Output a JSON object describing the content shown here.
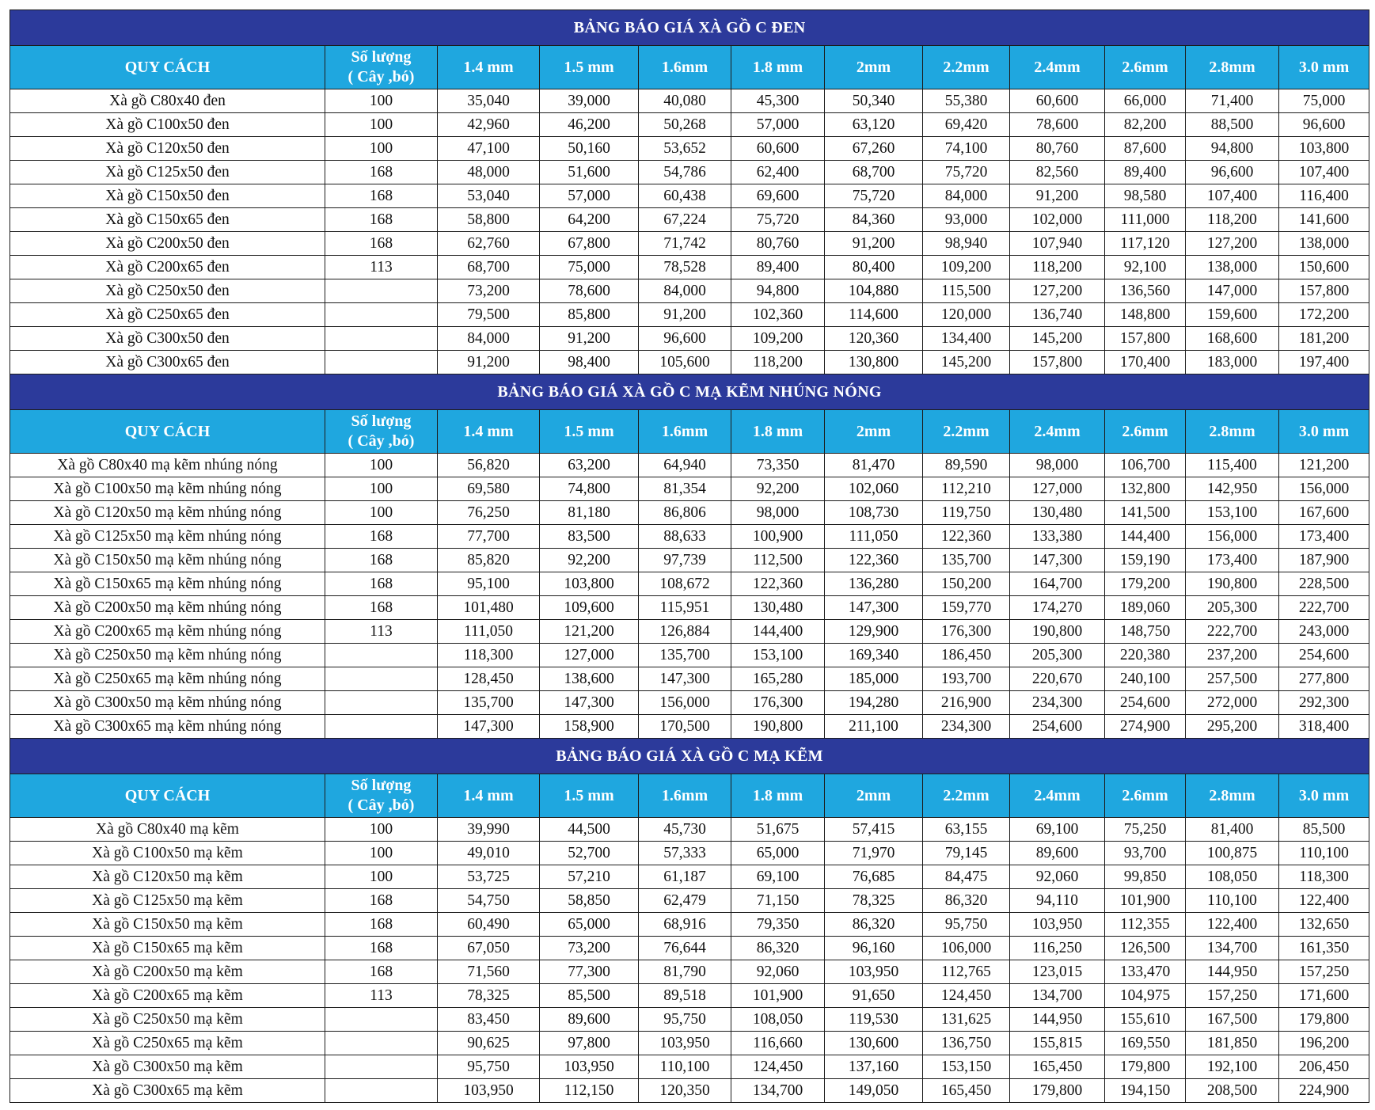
{
  "headers": {
    "spec": "QUY CÁCH",
    "qty_line1": "Số lượng",
    "qty_line2": "( Cây ,bó)",
    "thicknesses": [
      "1.4 mm",
      "1.5 mm",
      "1.6mm",
      "1.8 mm",
      "2mm",
      "2.2mm",
      "2.4mm",
      "2.6mm",
      "2.8mm",
      "3.0 mm"
    ]
  },
  "tables": [
    {
      "title": "BẢNG BÁO GIÁ XÀ GỒ C ĐEN",
      "rows": [
        {
          "spec": "Xà gồ C80x40 đen",
          "qty": "100",
          "prices": [
            "35,040",
            "39,000",
            "40,080",
            "45,300",
            "50,340",
            "55,380",
            "60,600",
            "66,000",
            "71,400",
            "75,000"
          ]
        },
        {
          "spec": "Xà gồ C100x50 đen",
          "qty": "100",
          "prices": [
            "42,960",
            "46,200",
            "50,268",
            "57,000",
            "63,120",
            "69,420",
            "78,600",
            "82,200",
            "88,500",
            "96,600"
          ]
        },
        {
          "spec": "Xà gồ C120x50 đen",
          "qty": "100",
          "prices": [
            "47,100",
            "50,160",
            "53,652",
            "60,600",
            "67,260",
            "74,100",
            "80,760",
            "87,600",
            "94,800",
            "103,800"
          ]
        },
        {
          "spec": "Xà gồ C125x50 đen",
          "qty": "168",
          "prices": [
            "48,000",
            "51,600",
            "54,786",
            "62,400",
            "68,700",
            "75,720",
            "82,560",
            "89,400",
            "96,600",
            "107,400"
          ]
        },
        {
          "spec": "Xà gồ C150x50 đen",
          "qty": "168",
          "prices": [
            "53,040",
            "57,000",
            "60,438",
            "69,600",
            "75,720",
            "84,000",
            "91,200",
            "98,580",
            "107,400",
            "116,400"
          ]
        },
        {
          "spec": "Xà gồ C150x65 đen",
          "qty": "168",
          "prices": [
            "58,800",
            "64,200",
            "67,224",
            "75,720",
            "84,360",
            "93,000",
            "102,000",
            "111,000",
            "118,200",
            "141,600"
          ]
        },
        {
          "spec": "Xà gồ C200x50 đen",
          "qty": "168",
          "prices": [
            "62,760",
            "67,800",
            "71,742",
            "80,760",
            "91,200",
            "98,940",
            "107,940",
            "117,120",
            "127,200",
            "138,000"
          ]
        },
        {
          "spec": "Xà gồ C200x65 đen",
          "qty": "113",
          "prices": [
            "68,700",
            "75,000",
            "78,528",
            "89,400",
            "80,400",
            "109,200",
            "118,200",
            "92,100",
            "138,000",
            "150,600"
          ]
        },
        {
          "spec": "Xà gồ C250x50 đen",
          "qty": "",
          "prices": [
            "73,200",
            "78,600",
            "84,000",
            "94,800",
            "104,880",
            "115,500",
            "127,200",
            "136,560",
            "147,000",
            "157,800"
          ]
        },
        {
          "spec": "Xà gồ C250x65 đen",
          "qty": "",
          "prices": [
            "79,500",
            "85,800",
            "91,200",
            "102,360",
            "114,600",
            "120,000",
            "136,740",
            "148,800",
            "159,600",
            "172,200"
          ]
        },
        {
          "spec": "Xà gồ C300x50 đen",
          "qty": "",
          "prices": [
            "84,000",
            "91,200",
            "96,600",
            "109,200",
            "120,360",
            "134,400",
            "145,200",
            "157,800",
            "168,600",
            "181,200"
          ]
        },
        {
          "spec": "Xà gồ C300x65 đen",
          "qty": "",
          "prices": [
            "91,200",
            "98,400",
            "105,600",
            "118,200",
            "130,800",
            "145,200",
            "157,800",
            "170,400",
            "183,000",
            "197,400"
          ]
        }
      ]
    },
    {
      "title": "BẢNG BÁO GIÁ XÀ GỒ C MẠ KẼM NHÚNG NÓNG",
      "rows": [
        {
          "spec": "Xà gồ C80x40 mạ kẽm nhúng nóng",
          "qty": "100",
          "prices": [
            "56,820",
            "63,200",
            "64,940",
            "73,350",
            "81,470",
            "89,590",
            "98,000",
            "106,700",
            "115,400",
            "121,200"
          ]
        },
        {
          "spec": "Xà gồ C100x50 mạ kẽm nhúng nóng",
          "qty": "100",
          "prices": [
            "69,580",
            "74,800",
            "81,354",
            "92,200",
            "102,060",
            "112,210",
            "127,000",
            "132,800",
            "142,950",
            "156,000"
          ]
        },
        {
          "spec": "Xà gồ C120x50 mạ kẽm nhúng nóng",
          "qty": "100",
          "prices": [
            "76,250",
            "81,180",
            "86,806",
            "98,000",
            "108,730",
            "119,750",
            "130,480",
            "141,500",
            "153,100",
            "167,600"
          ]
        },
        {
          "spec": "Xà gồ C125x50 mạ kẽm nhúng nóng",
          "qty": "168",
          "prices": [
            "77,700",
            "83,500",
            "88,633",
            "100,900",
            "111,050",
            "122,360",
            "133,380",
            "144,400",
            "156,000",
            "173,400"
          ]
        },
        {
          "spec": "Xà gồ C150x50 mạ kẽm nhúng nóng",
          "qty": "168",
          "prices": [
            "85,820",
            "92,200",
            "97,739",
            "112,500",
            "122,360",
            "135,700",
            "147,300",
            "159,190",
            "173,400",
            "187,900"
          ]
        },
        {
          "spec": "Xà gồ C150x65 mạ kẽm nhúng nóng",
          "qty": "168",
          "prices": [
            "95,100",
            "103,800",
            "108,672",
            "122,360",
            "136,280",
            "150,200",
            "164,700",
            "179,200",
            "190,800",
            "228,500"
          ]
        },
        {
          "spec": "Xà gồ C200x50 mạ kẽm nhúng nóng",
          "qty": "168",
          "prices": [
            "101,480",
            "109,600",
            "115,951",
            "130,480",
            "147,300",
            "159,770",
            "174,270",
            "189,060",
            "205,300",
            "222,700"
          ]
        },
        {
          "spec": "Xà gồ C200x65 mạ kẽm nhúng nóng",
          "qty": "113",
          "prices": [
            "111,050",
            "121,200",
            "126,884",
            "144,400",
            "129,900",
            "176,300",
            "190,800",
            "148,750",
            "222,700",
            "243,000"
          ]
        },
        {
          "spec": "Xà gồ C250x50 mạ kẽm nhúng nóng",
          "qty": "",
          "prices": [
            "118,300",
            "127,000",
            "135,700",
            "153,100",
            "169,340",
            "186,450",
            "205,300",
            "220,380",
            "237,200",
            "254,600"
          ]
        },
        {
          "spec": "Xà gồ C250x65 mạ kẽm nhúng nóng",
          "qty": "",
          "prices": [
            "128,450",
            "138,600",
            "147,300",
            "165,280",
            "185,000",
            "193,700",
            "220,670",
            "240,100",
            "257,500",
            "277,800"
          ]
        },
        {
          "spec": "Xà gồ C300x50 mạ kẽm nhúng nóng",
          "qty": "",
          "prices": [
            "135,700",
            "147,300",
            "156,000",
            "176,300",
            "194,280",
            "216,900",
            "234,300",
            "254,600",
            "272,000",
            "292,300"
          ]
        },
        {
          "spec": "Xà gồ C300x65 mạ kẽm nhúng nóng",
          "qty": "",
          "prices": [
            "147,300",
            "158,900",
            "170,500",
            "190,800",
            "211,100",
            "234,300",
            "254,600",
            "274,900",
            "295,200",
            "318,400"
          ]
        }
      ]
    },
    {
      "title": "BẢNG BÁO GIÁ XÀ GỒ C MẠ KẼM",
      "rows": [
        {
          "spec": "Xà gồ C80x40 mạ kẽm",
          "qty": "100",
          "prices": [
            "39,990",
            "44,500",
            "45,730",
            "51,675",
            "57,415",
            "63,155",
            "69,100",
            "75,250",
            "81,400",
            "85,500"
          ]
        },
        {
          "spec": "Xà gồ C100x50 mạ kẽm",
          "qty": "100",
          "prices": [
            "49,010",
            "52,700",
            "57,333",
            "65,000",
            "71,970",
            "79,145",
            "89,600",
            "93,700",
            "100,875",
            "110,100"
          ]
        },
        {
          "spec": "Xà gồ C120x50 mạ kẽm",
          "qty": "100",
          "prices": [
            "53,725",
            "57,210",
            "61,187",
            "69,100",
            "76,685",
            "84,475",
            "92,060",
            "99,850",
            "108,050",
            "118,300"
          ]
        },
        {
          "spec": "Xà gồ C125x50 mạ kẽm",
          "qty": "168",
          "prices": [
            "54,750",
            "58,850",
            "62,479",
            "71,150",
            "78,325",
            "86,320",
            "94,110",
            "101,900",
            "110,100",
            "122,400"
          ]
        },
        {
          "spec": "Xà gồ C150x50 mạ kẽm",
          "qty": "168",
          "prices": [
            "60,490",
            "65,000",
            "68,916",
            "79,350",
            "86,320",
            "95,750",
            "103,950",
            "112,355",
            "122,400",
            "132,650"
          ]
        },
        {
          "spec": "Xà gồ C150x65 mạ kẽm",
          "qty": "168",
          "prices": [
            "67,050",
            "73,200",
            "76,644",
            "86,320",
            "96,160",
            "106,000",
            "116,250",
            "126,500",
            "134,700",
            "161,350"
          ]
        },
        {
          "spec": "Xà gồ C200x50 mạ kẽm",
          "qty": "168",
          "prices": [
            "71,560",
            "77,300",
            "81,790",
            "92,060",
            "103,950",
            "112,765",
            "123,015",
            "133,470",
            "144,950",
            "157,250"
          ]
        },
        {
          "spec": "Xà gồ C200x65 mạ kẽm",
          "qty": "113",
          "prices": [
            "78,325",
            "85,500",
            "89,518",
            "101,900",
            "91,650",
            "124,450",
            "134,700",
            "104,975",
            "157,250",
            "171,600"
          ]
        },
        {
          "spec": "Xà gồ C250x50 mạ kẽm",
          "qty": "",
          "prices": [
            "83,450",
            "89,600",
            "95,750",
            "108,050",
            "119,530",
            "131,625",
            "144,950",
            "155,610",
            "167,500",
            "179,800"
          ]
        },
        {
          "spec": "Xà gồ C250x65 mạ kẽm",
          "qty": "",
          "prices": [
            "90,625",
            "97,800",
            "103,950",
            "116,660",
            "130,600",
            "136,750",
            "155,815",
            "169,550",
            "181,850",
            "196,200"
          ]
        },
        {
          "spec": "Xà gồ C300x50 mạ kẽm",
          "qty": "",
          "prices": [
            "95,750",
            "103,950",
            "110,100",
            "124,450",
            "137,160",
            "153,150",
            "165,450",
            "179,800",
            "192,100",
            "206,450"
          ]
        },
        {
          "spec": "Xà gồ C300x65 mạ kẽm",
          "qty": "",
          "prices": [
            "103,950",
            "112,150",
            "120,350",
            "134,700",
            "149,050",
            "165,450",
            "179,800",
            "194,150",
            "208,500",
            "224,900"
          ]
        }
      ]
    }
  ],
  "colors": {
    "title_band": "#2c3a9b",
    "header_band": "#1fa7df",
    "border": "#1c1c1c",
    "cell_text": "#111111"
  }
}
